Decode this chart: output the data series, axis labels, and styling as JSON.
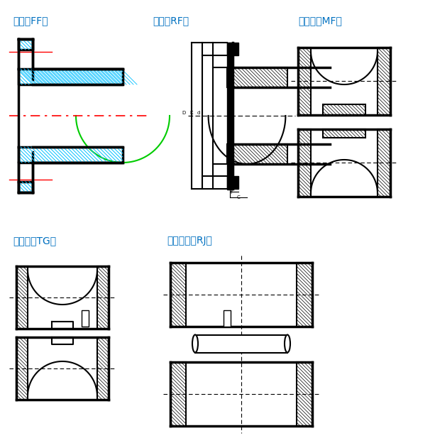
{
  "title_ff": "平面（FF）",
  "title_rf": "突面（RF）",
  "title_mf": "凹凸面（MF）",
  "title_tg": "榫槽面（TG）",
  "title_rj": "环连接面（RJ）",
  "title_color": "#0070c0",
  "bg_color": "#ffffff",
  "line_color": "#000000",
  "hatch_color": "#00bfff",
  "center_line_color": "#ff0000",
  "green_color": "#00cc00",
  "dashed_color": "#888888"
}
